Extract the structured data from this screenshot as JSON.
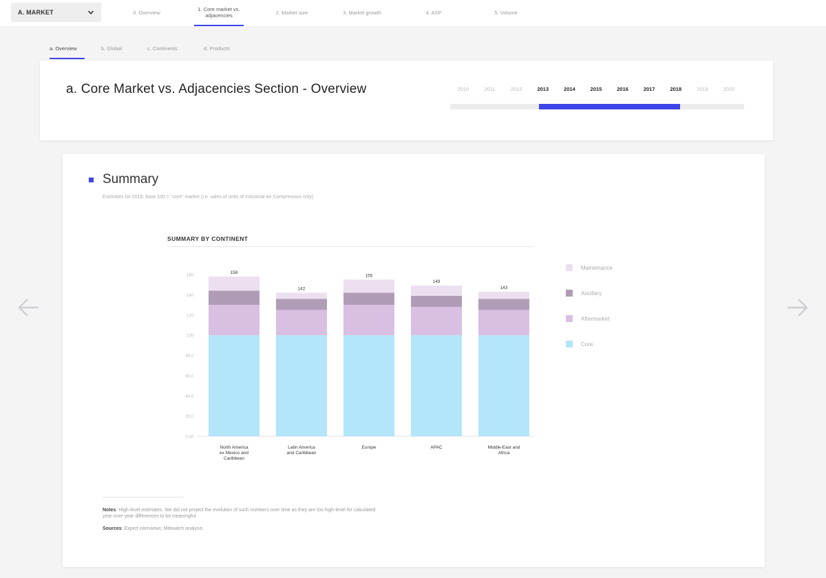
{
  "topnav": {
    "market_label": "A. MARKET",
    "tabs": [
      {
        "label": "0. Overview"
      },
      {
        "label": "1. Core market vs. adjacencies"
      },
      {
        "label": "2. Market size"
      },
      {
        "label": "3. Market growth"
      },
      {
        "label": "4. ASP"
      },
      {
        "label": "5. Volume"
      }
    ],
    "active_tab": 1
  },
  "subtabs": [
    {
      "label": "a. Overview"
    },
    {
      "label": "b. Global"
    },
    {
      "label": "c. Continents"
    },
    {
      "label": "d. Products"
    }
  ],
  "active_subtab": 0,
  "header": {
    "title": "a. Core Market vs. Adjacencies Section - Overview",
    "years": [
      "2010",
      "2011",
      "2012",
      "2013",
      "2014",
      "2015",
      "2016",
      "2017",
      "2018",
      "2019",
      "2020"
    ],
    "selected_years": [
      "2013",
      "2014",
      "2015",
      "2016",
      "2017",
      "2018"
    ]
  },
  "summary": {
    "title": "Summary",
    "subtitle": "Estimates for 2016, base 100 = \"core\" market (i.e. sales of units of Industrial Air Compressors only)"
  },
  "chart_data": {
    "type": "bar",
    "stacked": true,
    "title": "SUMMARY BY CONTINENT",
    "categories": [
      "North America ex Mexico and Caribbean",
      "Latin America and Caribbean",
      "Europe",
      "APAC",
      "Middle-East and Africa"
    ],
    "series": [
      {
        "name": "Core",
        "color": "#b3e5fb",
        "values": [
          100,
          100,
          100,
          100,
          100
        ]
      },
      {
        "name": "Aftermarket",
        "color": "#d9bfe1",
        "values": [
          30,
          25,
          30,
          28,
          25
        ]
      },
      {
        "name": "Ancillary",
        "color": "#b19cb7",
        "values": [
          14,
          11,
          12,
          11,
          11
        ]
      },
      {
        "name": "Maintenance",
        "color": "#ecdff0",
        "values": [
          14,
          6,
          13,
          10,
          7
        ]
      }
    ],
    "totals": [
      "158",
      "142",
      "155",
      "149",
      "143"
    ],
    "ylim": [
      0,
      160
    ],
    "yticks": [
      "0.00",
      "20.0",
      "40.0",
      "60.0",
      "80.0",
      "100",
      "120",
      "140",
      "160"
    ],
    "legend_position": "right"
  },
  "legend_order": [
    "Maintenance",
    "Ancillary",
    "Aftermarket",
    "Core"
  ],
  "notes": {
    "notes_label": "Notes",
    "notes_text": ": High-level estimates. We did not project the evolution of such numbers over time as they are too high-level for calculated year-over-year differences to be meaningful.",
    "sources_label": "Sources",
    "sources_text": ": Expert interviews; Mittwatch analysis"
  },
  "colors": {
    "accent": "#3d44e8"
  }
}
